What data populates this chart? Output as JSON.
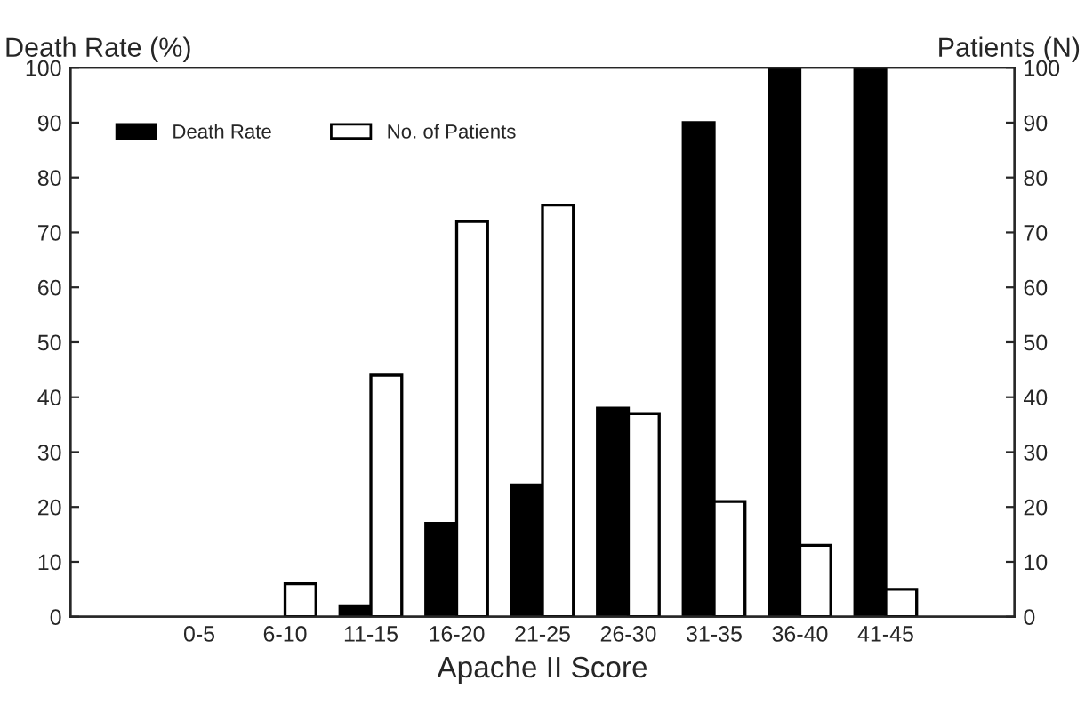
{
  "chart_data": {
    "type": "bar",
    "xlabel": "Apache II Score",
    "ylabel": "Death Rate (%)",
    "y2label": "Patients (N)",
    "categories": [
      "0-5",
      "6-10",
      "11-15",
      "16-20",
      "21-25",
      "26-30",
      "31-35",
      "36-40",
      "41-45"
    ],
    "series": [
      {
        "name": "Death Rate",
        "color": "#000000",
        "values": [
          null,
          null,
          2,
          17,
          24,
          38,
          90,
          100,
          100
        ]
      },
      {
        "name": "No. of Patients",
        "color": "#ffffff",
        "axis": "y2",
        "values": [
          null,
          6,
          44,
          72,
          75,
          37,
          21,
          13,
          5
        ]
      }
    ],
    "ylim": [
      0,
      100
    ],
    "yticks": [
      0,
      10,
      20,
      30,
      40,
      50,
      60,
      70,
      80,
      90,
      100
    ],
    "y2lim": [
      0,
      100
    ],
    "y2ticks": [
      0,
      10,
      20,
      30,
      40,
      50,
      60,
      70,
      80,
      90,
      100
    ],
    "legend": "top left",
    "grid": false
  }
}
